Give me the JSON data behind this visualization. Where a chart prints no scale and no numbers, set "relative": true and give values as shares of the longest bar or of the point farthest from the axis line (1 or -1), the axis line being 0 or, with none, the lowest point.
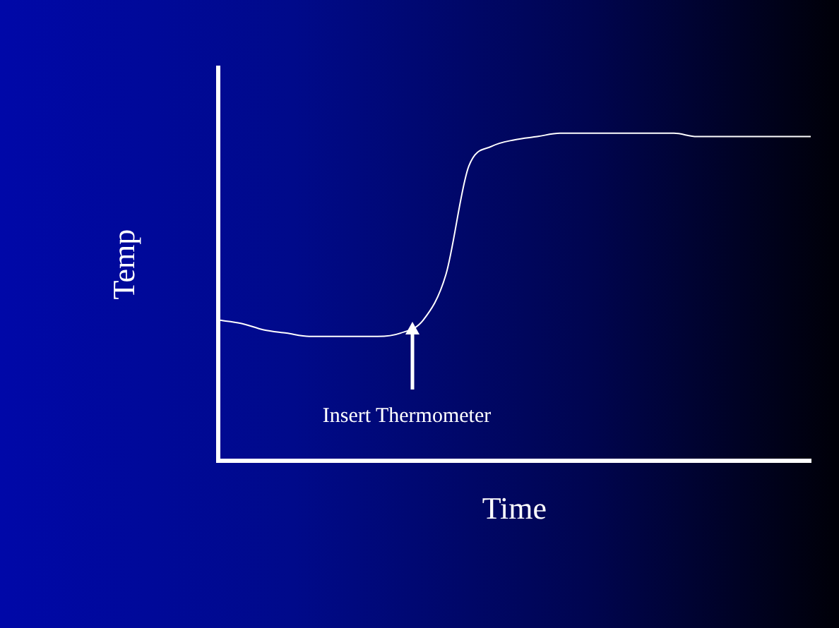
{
  "chart_data": {
    "type": "line",
    "relative": true,
    "xlabel": "Time",
    "ylabel": "Temp",
    "categories": [
      null,
      null,
      null,
      null,
      null,
      null,
      null,
      null,
      null,
      null,
      null,
      null,
      null,
      null,
      null,
      null,
      null,
      null,
      null,
      null,
      null,
      null,
      null,
      null,
      null,
      null,
      null
    ],
    "series": [
      {
        "color": "#ffffff",
        "values": [
          0.43,
          0.42,
          0.4,
          0.39,
          0.38,
          0.38,
          0.38,
          0.38,
          0.39,
          0.43,
          0.57,
          0.9,
          0.96,
          0.98,
          0.99,
          1,
          1,
          1,
          1,
          1,
          1,
          0.99,
          0.99,
          0.99,
          0.99,
          0.99,
          0.99
        ]
      }
    ],
    "annotations": [
      "Insert Thermometer"
    ],
    "grid": false,
    "legend": false,
    "marker": "none",
    "line_style": "solid"
  }
}
